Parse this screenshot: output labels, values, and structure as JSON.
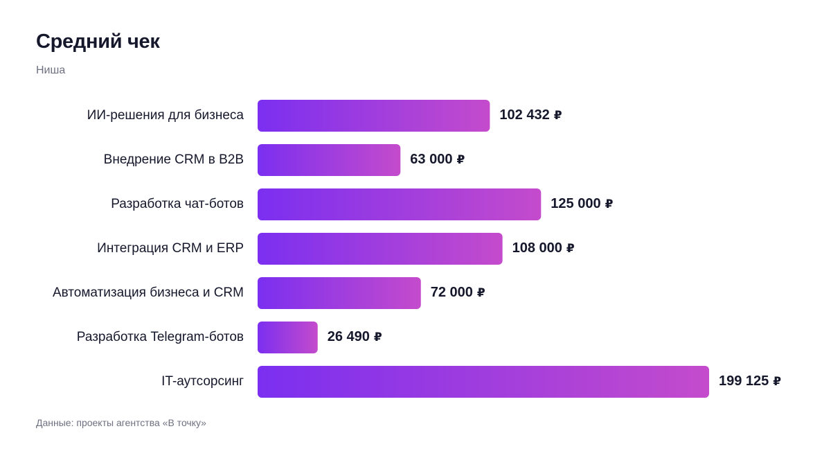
{
  "header": {
    "title": "Средний чек",
    "subtitle": "Ниша"
  },
  "footer": {
    "source": "Данные: проекты агентства «В точку»"
  },
  "colors": {
    "bar_start": "#7b2ff0",
    "bar_end": "#c44bcc",
    "text": "#15172b",
    "muted": "#6e7080"
  },
  "chart_data": {
    "type": "bar",
    "orientation": "horizontal",
    "categories": [
      "ИИ-решения для бизнеса",
      "Внедрение CRM в B2B",
      "Разработка чат-ботов",
      "Интеграция CRM и ERP",
      "Автоматизация бизнеса и CRM",
      "Разработка Telegram-ботов",
      "IT-аутсорсинг"
    ],
    "values": [
      102432,
      63000,
      125000,
      108000,
      72000,
      26490,
      199125
    ],
    "value_labels": [
      "102 432",
      "63 000",
      "125 000",
      "108 000",
      "72 000",
      "26 490",
      "199 125"
    ],
    "unit": "₽",
    "title": "Средний чек",
    "subtitle": "Ниша",
    "xlim": [
      0,
      199125
    ],
    "grid": false,
    "legend": false
  }
}
